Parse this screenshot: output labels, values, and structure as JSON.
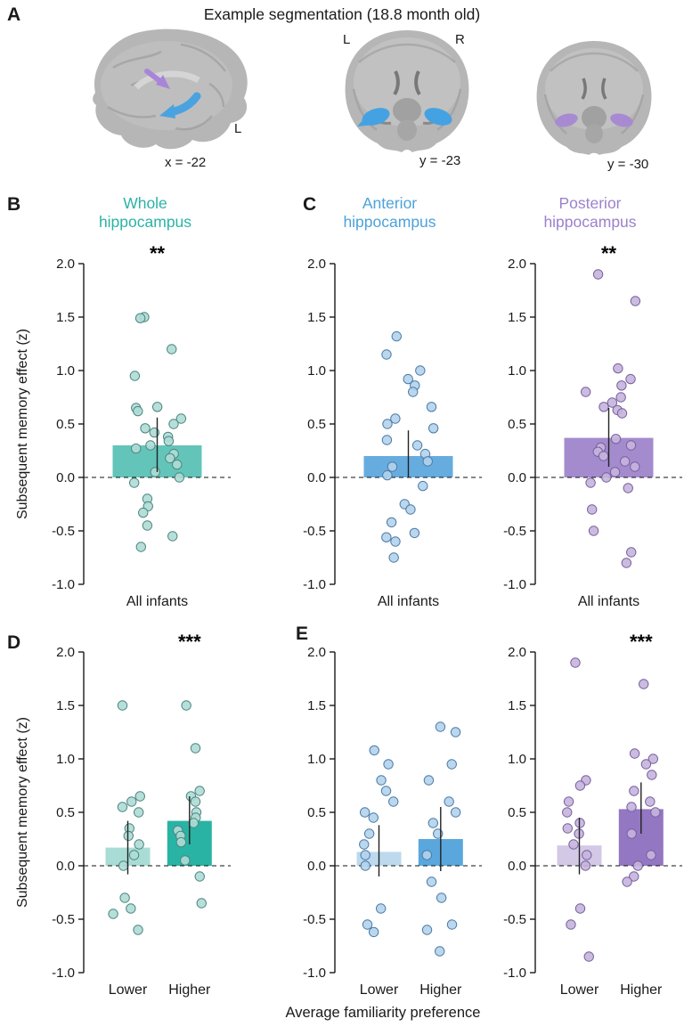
{
  "figure": {
    "panel_a": {
      "label": "A",
      "title": "Example segmentation (18.8 month old)",
      "sagittal": {
        "hemisphere_label": "L",
        "coord_label": "x = -22"
      },
      "coronal_anterior": {
        "left_label": "L",
        "right_label": "R",
        "coord_label": "y = -23"
      },
      "coronal_posterior": {
        "coord_label": "y = -30"
      }
    },
    "panel_labels": {
      "b": "B",
      "c": "C",
      "d": "D",
      "e": "E"
    },
    "xlabel": "Average familiarity preference"
  },
  "colors": {
    "whole_hippocampus_title": "#2cb3a6",
    "anterior_hippocampus_title": "#4da2da",
    "posterior_hippocampus_title": "#9c82cb",
    "segmentation_anterior_blue": "#45a2e2",
    "segmentation_posterior_purple": "#a885d8",
    "brain_gray": "#b6b6b6"
  },
  "chart_data": [
    {
      "id": "whole-all-infants",
      "panel": "B",
      "type": "bar",
      "title": "Whole\nhippocampus",
      "title_color": "#2cb3a6",
      "ylabel": "Subsequent memory effect (z)",
      "ylim": [
        -1.0,
        2.0
      ],
      "yticks": [
        2.0,
        1.5,
        1.0,
        0.5,
        0.0,
        -0.5,
        -1.0
      ],
      "bars": [
        {
          "label": "All infants",
          "value": 0.3,
          "color": "#63c5b9",
          "err": [
            0.05,
            0.56
          ],
          "sig": "**",
          "point_fill": "#aedbd6",
          "point_stroke": "#4e8680",
          "points": [
            1.5,
            1.49,
            1.2,
            0.95,
            0.66,
            0.65,
            0.62,
            0.55,
            0.5,
            0.46,
            0.42,
            0.38,
            0.34,
            0.3,
            0.27,
            0.22,
            0.18,
            0.12,
            0.05,
            0.0,
            -0.05,
            -0.2,
            -0.27,
            -0.33,
            -0.45,
            -0.55,
            -0.65
          ]
        }
      ]
    },
    {
      "id": "anterior-all-infants",
      "panel": "C",
      "type": "bar",
      "title": "Anterior\nhippocampus",
      "title_color": "#4da2da",
      "ylim": [
        -1.0,
        2.0
      ],
      "yticks": [
        2.0,
        1.5,
        1.0,
        0.5,
        0.0,
        -0.5,
        -1.0
      ],
      "bars": [
        {
          "label": "All infants",
          "value": 0.2,
          "color": "#66acdf",
          "err": [
            0.0,
            0.44
          ],
          "sig": null,
          "point_fill": "#b3d3ec",
          "point_stroke": "#4d7ba6",
          "points": [
            1.32,
            1.15,
            1.0,
            0.92,
            0.86,
            0.8,
            0.66,
            0.55,
            0.5,
            0.46,
            0.35,
            0.3,
            0.22,
            0.15,
            0.1,
            0.02,
            -0.08,
            -0.25,
            -0.3,
            -0.42,
            -0.52,
            -0.56,
            -0.6,
            -0.75
          ]
        }
      ]
    },
    {
      "id": "posterior-all-infants",
      "panel": "C",
      "type": "bar",
      "title": "Posterior\nhippocampus",
      "title_color": "#9c82cb",
      "ylim": [
        -1.0,
        2.0
      ],
      "yticks": [
        2.0,
        1.5,
        1.0,
        0.5,
        0.0,
        -0.5,
        -1.0
      ],
      "bars": [
        {
          "label": "All infants",
          "value": 0.37,
          "color": "#a48bce",
          "err": [
            0.1,
            0.65
          ],
          "sig": "**",
          "point_fill": "#c6b4de",
          "point_stroke": "#77619c",
          "points": [
            1.9,
            1.65,
            1.02,
            0.92,
            0.86,
            0.8,
            0.75,
            0.7,
            0.66,
            0.63,
            0.6,
            0.36,
            0.3,
            0.28,
            0.24,
            0.2,
            0.15,
            0.1,
            0.05,
            0.0,
            -0.05,
            -0.1,
            -0.3,
            -0.5,
            -0.7,
            -0.8
          ]
        }
      ]
    },
    {
      "id": "whole-by-preference",
      "panel": "D",
      "type": "bar",
      "title": "",
      "title_color": "#2cb3a6",
      "ylabel": "Subsequent memory effect (z)",
      "ylim": [
        -1.0,
        2.0
      ],
      "yticks": [
        2.0,
        1.5,
        1.0,
        0.5,
        0.0,
        -0.5,
        -1.0
      ],
      "bars": [
        {
          "label": "Lower",
          "value": 0.17,
          "color": "#a9dcd5",
          "err": [
            -0.08,
            0.42
          ],
          "sig": null,
          "point_fill": "#aedbd6",
          "point_stroke": "#4e8680",
          "points": [
            1.5,
            0.65,
            0.6,
            0.55,
            0.5,
            0.35,
            0.28,
            0.2,
            0.1,
            0.0,
            -0.3,
            -0.4,
            -0.45,
            -0.6
          ]
        },
        {
          "label": "Higher",
          "value": 0.42,
          "color": "#29b3a4",
          "err": [
            0.2,
            0.65
          ],
          "sig": "***",
          "point_fill": "#aedbd6",
          "point_stroke": "#4e8680",
          "points": [
            1.5,
            1.1,
            0.7,
            0.65,
            0.6,
            0.5,
            0.45,
            0.4,
            0.33,
            0.28,
            0.22,
            0.05,
            -0.1,
            -0.35
          ]
        }
      ]
    },
    {
      "id": "anterior-by-preference",
      "panel": "E",
      "type": "bar",
      "title": "",
      "title_color": "#4da2da",
      "ylim": [
        -1.0,
        2.0
      ],
      "yticks": [
        2.0,
        1.5,
        1.0,
        0.5,
        0.0,
        -0.5,
        -1.0
      ],
      "bars": [
        {
          "label": "Lower",
          "value": 0.13,
          "color": "#bdd9ee",
          "err": [
            -0.1,
            0.38
          ],
          "sig": null,
          "point_fill": "#b3d3ec",
          "point_stroke": "#4d7ba6",
          "points": [
            1.08,
            0.95,
            0.8,
            0.7,
            0.6,
            0.5,
            0.45,
            0.3,
            0.2,
            0.1,
            0.0,
            -0.4,
            -0.55,
            -0.62
          ]
        },
        {
          "label": "Higher",
          "value": 0.25,
          "color": "#5aa7dd",
          "err": [
            -0.05,
            0.55
          ],
          "sig": null,
          "point_fill": "#b3d3ec",
          "point_stroke": "#4d7ba6",
          "points": [
            1.3,
            1.25,
            0.95,
            0.8,
            0.6,
            0.5,
            0.4,
            0.3,
            0.1,
            -0.15,
            -0.3,
            -0.55,
            -0.6,
            -0.8
          ]
        }
      ]
    },
    {
      "id": "posterior-by-preference",
      "panel": "E",
      "type": "bar",
      "title": "",
      "title_color": "#9c82cb",
      "ylim": [
        -1.0,
        2.0
      ],
      "yticks": [
        2.0,
        1.5,
        1.0,
        0.5,
        0.0,
        -0.5,
        -1.0
      ],
      "bars": [
        {
          "label": "Lower",
          "value": 0.19,
          "color": "#d3c8e6",
          "err": [
            -0.08,
            0.45
          ],
          "sig": null,
          "point_fill": "#c6b4de",
          "point_stroke": "#77619c",
          "points": [
            1.9,
            0.8,
            0.75,
            0.6,
            0.5,
            0.4,
            0.35,
            0.3,
            0.2,
            0.1,
            0.0,
            -0.4,
            -0.55,
            -0.85
          ]
        },
        {
          "label": "Higher",
          "value": 0.53,
          "color": "#9377c2",
          "err": [
            0.3,
            0.78
          ],
          "sig": "***",
          "point_fill": "#c6b4de",
          "point_stroke": "#77619c",
          "points": [
            1.7,
            1.05,
            1.0,
            0.95,
            0.85,
            0.7,
            0.6,
            0.55,
            0.5,
            0.3,
            0.1,
            0.0,
            -0.1,
            -0.15
          ]
        }
      ]
    }
  ]
}
